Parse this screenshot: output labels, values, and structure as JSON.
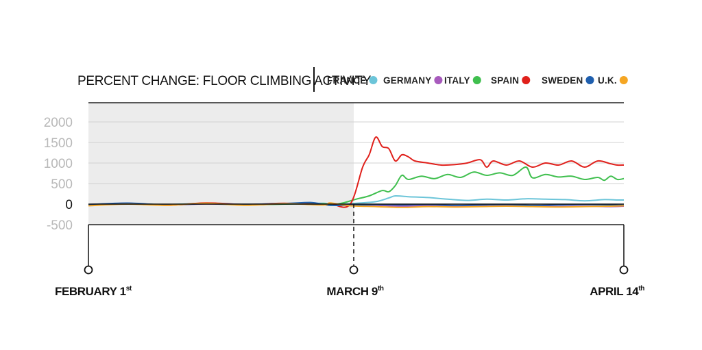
{
  "chart_data": {
    "type": "line",
    "title": "PERCENT CHANGE: FLOOR CLIMBING ACTIVITY",
    "ylim": [
      -500,
      2000
    ],
    "yticks": [
      2000,
      1500,
      1000,
      500,
      0,
      -500
    ],
    "x_range": [
      "February 1",
      "April 14"
    ],
    "shaded_region": [
      "February 1",
      "March 9"
    ],
    "grid": true,
    "legend": "top-right",
    "date_markers": [
      {
        "label": "FEBRUARY 1",
        "suffix": "st",
        "date": "February 1"
      },
      {
        "label": "MARCH 9",
        "suffix": "th",
        "date": "March 9"
      },
      {
        "label": "APRIL 14",
        "suffix": "th",
        "date": "April 14"
      }
    ],
    "series": [
      {
        "name": "FRANCE",
        "color": "#6cc5d9",
        "points": [
          [
            0,
            -20
          ],
          [
            6,
            10
          ],
          [
            12,
            -10
          ],
          [
            18,
            20
          ],
          [
            24,
            -10
          ],
          [
            30,
            5
          ],
          [
            36,
            20
          ],
          [
            37,
            -30
          ],
          [
            38,
            -10
          ],
          [
            41,
            20
          ],
          [
            44,
            60
          ],
          [
            46,
            150
          ],
          [
            47,
            200
          ],
          [
            49,
            180
          ],
          [
            52,
            160
          ],
          [
            55,
            120
          ],
          [
            58,
            90
          ],
          [
            61,
            120
          ],
          [
            64,
            100
          ],
          [
            67,
            130
          ],
          [
            70,
            120
          ],
          [
            73,
            110
          ],
          [
            76,
            80
          ],
          [
            79,
            110
          ],
          [
            81,
            100
          ],
          [
            82,
            100
          ]
        ]
      },
      {
        "name": "GERMANY",
        "color": "#a85bbd",
        "points": [
          [
            0,
            -10
          ],
          [
            6,
            15
          ],
          [
            12,
            -20
          ],
          [
            18,
            5
          ],
          [
            24,
            -15
          ],
          [
            30,
            10
          ],
          [
            36,
            0
          ],
          [
            37,
            -20
          ],
          [
            40,
            -20
          ],
          [
            44,
            -30
          ],
          [
            48,
            -50
          ],
          [
            52,
            -40
          ],
          [
            56,
            -60
          ],
          [
            60,
            -50
          ],
          [
            64,
            -40
          ],
          [
            68,
            -50
          ],
          [
            72,
            -60
          ],
          [
            76,
            -50
          ],
          [
            80,
            -60
          ],
          [
            82,
            -50
          ]
        ]
      },
      {
        "name": "ITALY",
        "color": "#3fbf4e",
        "points": [
          [
            0,
            -30
          ],
          [
            6,
            10
          ],
          [
            12,
            -15
          ],
          [
            18,
            15
          ],
          [
            24,
            -20
          ],
          [
            30,
            0
          ],
          [
            36,
            10
          ],
          [
            37,
            -20
          ],
          [
            39,
            30
          ],
          [
            41,
            120
          ],
          [
            43,
            200
          ],
          [
            45,
            330
          ],
          [
            46,
            300
          ],
          [
            47,
            450
          ],
          [
            48,
            700
          ],
          [
            49,
            600
          ],
          [
            51,
            680
          ],
          [
            53,
            620
          ],
          [
            55,
            720
          ],
          [
            57,
            650
          ],
          [
            59,
            780
          ],
          [
            61,
            700
          ],
          [
            63,
            760
          ],
          [
            65,
            700
          ],
          [
            67,
            900
          ],
          [
            68,
            640
          ],
          [
            70,
            720
          ],
          [
            72,
            660
          ],
          [
            74,
            680
          ],
          [
            76,
            600
          ],
          [
            78,
            650
          ],
          [
            79,
            580
          ],
          [
            80,
            680
          ],
          [
            81,
            600
          ],
          [
            82,
            620
          ]
        ]
      },
      {
        "name": "SPAIN",
        "color": "#e0201b",
        "points": [
          [
            0,
            -20
          ],
          [
            6,
            20
          ],
          [
            12,
            -30
          ],
          [
            18,
            30
          ],
          [
            24,
            -10
          ],
          [
            30,
            20
          ],
          [
            36,
            -10
          ],
          [
            37,
            20
          ],
          [
            40,
            -20
          ],
          [
            42,
            900
          ],
          [
            43,
            1200
          ],
          [
            44,
            1630
          ],
          [
            45,
            1400
          ],
          [
            46,
            1350
          ],
          [
            47,
            1050
          ],
          [
            48,
            1200
          ],
          [
            49,
            1150
          ],
          [
            50,
            1050
          ],
          [
            52,
            1000
          ],
          [
            54,
            950
          ],
          [
            56,
            960
          ],
          [
            58,
            1000
          ],
          [
            60,
            1080
          ],
          [
            61,
            900
          ],
          [
            62,
            1050
          ],
          [
            64,
            950
          ],
          [
            66,
            1050
          ],
          [
            68,
            900
          ],
          [
            70,
            1000
          ],
          [
            72,
            950
          ],
          [
            74,
            1050
          ],
          [
            76,
            900
          ],
          [
            78,
            1050
          ],
          [
            80,
            980
          ],
          [
            81,
            950
          ],
          [
            82,
            950
          ]
        ]
      },
      {
        "name": "SWEDEN",
        "color": "#1f5fae",
        "points": [
          [
            0,
            -10
          ],
          [
            6,
            25
          ],
          [
            12,
            -20
          ],
          [
            18,
            10
          ],
          [
            24,
            -5
          ],
          [
            30,
            15
          ],
          [
            34,
            40
          ],
          [
            36,
            -10
          ],
          [
            37,
            -30
          ],
          [
            40,
            -30
          ],
          [
            44,
            -10
          ],
          [
            48,
            -20
          ],
          [
            52,
            -10
          ],
          [
            56,
            -30
          ],
          [
            60,
            -20
          ],
          [
            64,
            -10
          ],
          [
            68,
            -30
          ],
          [
            72,
            -20
          ],
          [
            76,
            -10
          ],
          [
            80,
            -20
          ],
          [
            82,
            -30
          ]
        ]
      },
      {
        "name": "U.K.",
        "color": "#f5a623",
        "points": [
          [
            0,
            -40
          ],
          [
            6,
            0
          ],
          [
            12,
            -30
          ],
          [
            18,
            20
          ],
          [
            24,
            -30
          ],
          [
            30,
            10
          ],
          [
            36,
            -20
          ],
          [
            37,
            30
          ],
          [
            40,
            -40
          ],
          [
            44,
            -60
          ],
          [
            48,
            -80
          ],
          [
            52,
            -60
          ],
          [
            56,
            -70
          ],
          [
            60,
            -60
          ],
          [
            64,
            -50
          ],
          [
            68,
            -60
          ],
          [
            72,
            -70
          ],
          [
            76,
            -60
          ],
          [
            80,
            -50
          ],
          [
            82,
            -40
          ]
        ]
      }
    ],
    "x_day_domain": [
      0,
      82
    ]
  }
}
